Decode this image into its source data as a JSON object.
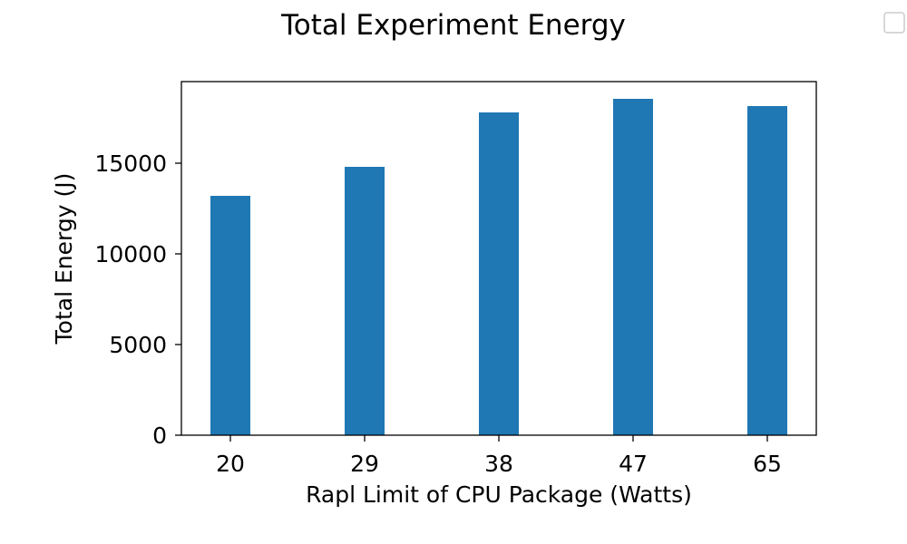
{
  "chart_data": {
    "type": "bar",
    "title": "Total Experiment Energy",
    "xlabel": "Rapl Limit of CPU Package (Watts)",
    "ylabel": "Total Energy (J)",
    "categories": [
      "20",
      "29",
      "38",
      "47",
      "65"
    ],
    "values": [
      13200,
      14800,
      17800,
      18550,
      18150
    ],
    "ylim": [
      0,
      19500
    ],
    "yticks": [
      0,
      5000,
      10000,
      15000
    ],
    "grid": false,
    "legend": "top-right",
    "bar_color": "#1f77b4"
  }
}
